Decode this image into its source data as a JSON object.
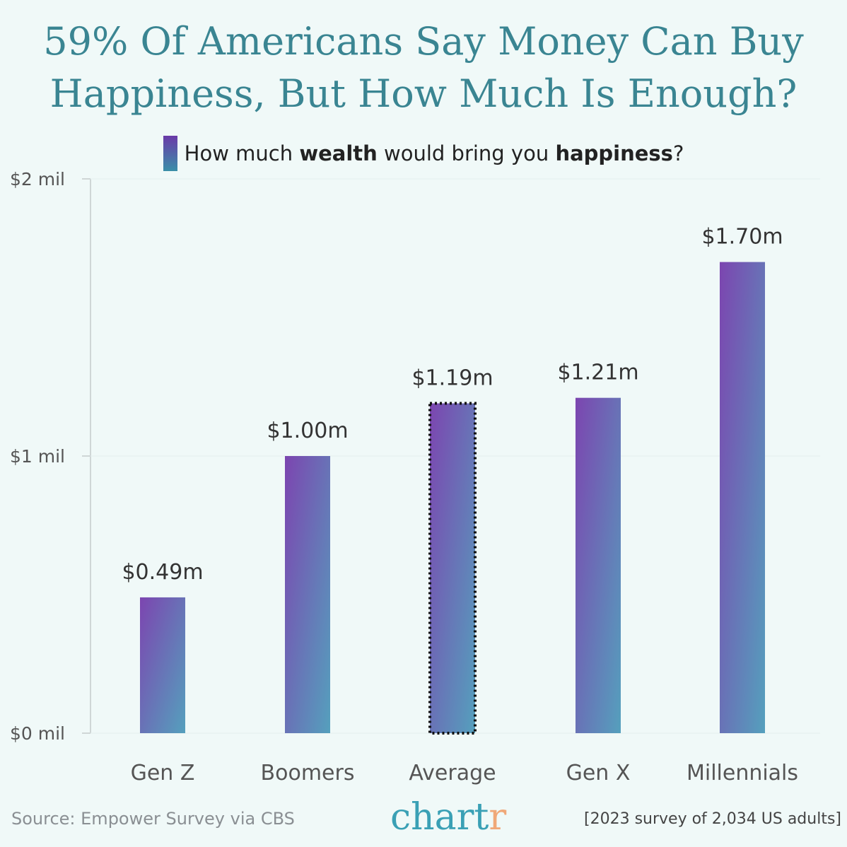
{
  "title_line1": "59% Of Americans Say Money Can Buy",
  "title_line2": "Happiness, But How Much Is Enough?",
  "legend": {
    "pre": "How much ",
    "b1": "wealth",
    "mid": " would bring you ",
    "b2": "happiness",
    "post": "?"
  },
  "chart_data": {
    "type": "bar",
    "categories": [
      "Gen Z",
      "Boomers",
      "Average",
      "Gen X",
      "Millennials"
    ],
    "values": [
      0.49,
      1.0,
      1.19,
      1.21,
      1.7
    ],
    "data_labels": [
      "$0.49m",
      "$1.00m",
      "$1.19m",
      "$1.21m",
      "$1.70m"
    ],
    "highlighted": "Average",
    "ylim": [
      0,
      2
    ],
    "yticks": [
      0,
      1,
      2
    ],
    "ytick_labels": [
      "$0 mil",
      "$1 mil",
      "$2 mil"
    ],
    "grid": true,
    "colors": {
      "top": "#7c45b0",
      "bottom": "#55a0bd"
    }
  },
  "source": "Source: Empower Survey via CBS",
  "logo": {
    "main": "chart",
    "accent": "r"
  },
  "note": "[2023 survey of 2,034 US adults]"
}
